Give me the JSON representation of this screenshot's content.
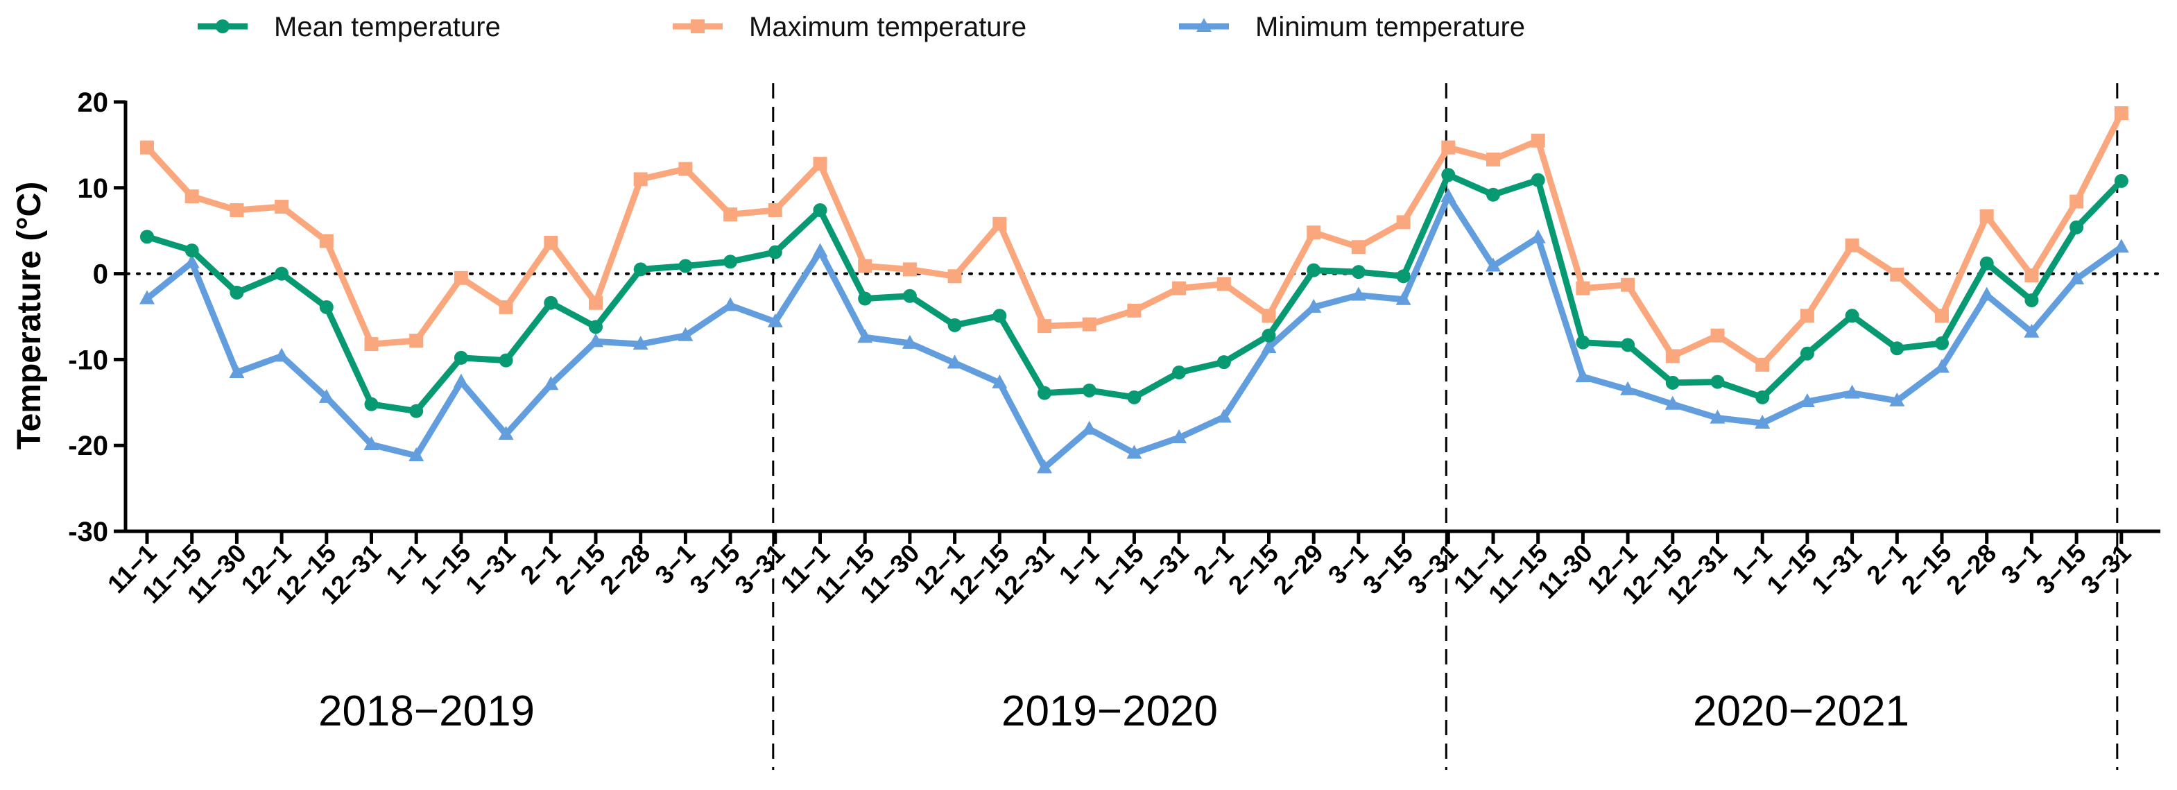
{
  "chart_data": {
    "type": "line",
    "ylabel": "Temperature (°C)",
    "ylim": [
      -30,
      20
    ],
    "yticks": [
      "20",
      "10",
      "0",
      "-10",
      "-20",
      "-30"
    ],
    "reference_line": 0,
    "categories": [
      "11−1",
      "11−15",
      "11−30",
      "12−1",
      "12−15",
      "12−31",
      "1−1",
      "1−15",
      "1−31",
      "2−1",
      "2−15",
      "2−28",
      "3−1",
      "3−15",
      "3−31",
      "11−1",
      "11−15",
      "11−30",
      "12−1",
      "12−15",
      "12−31",
      "1−1",
      "1−15",
      "1−31",
      "2−1",
      "2−15",
      "2−29",
      "3−1",
      "3−15",
      "3−31",
      "11−1",
      "11−15",
      "11-30",
      "12−1",
      "12−15",
      "12−31",
      "1−1",
      "1−15",
      "1−31",
      "2−1",
      "2−15",
      "2−28",
      "3−1",
      "3−15",
      "3−31"
    ],
    "seasons": [
      "2018−2019",
      "2019−2020",
      "2020−2021"
    ],
    "series": [
      {
        "name": "Mean temperature",
        "color": "#079A72",
        "marker": "circle",
        "values": [
          4.3,
          2.7,
          -2.2,
          0.0,
          -3.9,
          -15.2,
          -16.0,
          -9.8,
          -10.1,
          -3.4,
          -6.2,
          0.5,
          0.9,
          1.4,
          2.5,
          7.4,
          -2.9,
          -2.6,
          -6.0,
          -4.9,
          -13.9,
          -13.6,
          -14.4,
          -11.5,
          -10.3,
          -7.2,
          0.4,
          0.2,
          -0.3,
          11.5,
          9.2,
          10.9,
          -8.0,
          -8.3,
          -12.7,
          -12.6,
          -14.4,
          -9.3,
          -4.9,
          -8.7,
          -8.1,
          1.2,
          -3.1,
          5.4,
          10.8
        ]
      },
      {
        "name": "Maximum temperature",
        "color": "#FBA77D",
        "marker": "square",
        "values": [
          14.7,
          9.0,
          7.4,
          7.8,
          3.8,
          -8.2,
          -7.8,
          -0.5,
          -3.9,
          3.6,
          -3.4,
          11.0,
          12.2,
          6.9,
          7.4,
          12.8,
          0.9,
          0.5,
          -0.3,
          5.8,
          -6.1,
          -5.9,
          -4.3,
          -1.7,
          -1.2,
          -4.9,
          4.8,
          3.1,
          6.0,
          14.7,
          13.3,
          15.5,
          -1.7,
          -1.3,
          -9.6,
          -7.2,
          -10.6,
          -4.9,
          3.3,
          -0.1,
          -4.9,
          6.7,
          -0.2,
          8.4,
          18.7
        ]
      },
      {
        "name": "Minimum temperature",
        "color": "#629EDD",
        "marker": "triangle",
        "values": [
          -2.9,
          1.3,
          -11.5,
          -9.6,
          -14.4,
          -19.9,
          -21.2,
          -12.6,
          -18.7,
          -12.9,
          -7.9,
          -8.2,
          -7.2,
          -3.7,
          -5.6,
          2.6,
          -7.4,
          -8.1,
          -10.4,
          -12.7,
          -22.6,
          -18.1,
          -20.9,
          -19.1,
          -16.7,
          -8.6,
          -3.9,
          -2.5,
          -3.0,
          9.0,
          0.9,
          4.2,
          -12.0,
          -13.5,
          -15.2,
          -16.8,
          -17.4,
          -14.9,
          -13.9,
          -14.8,
          -10.9,
          -2.5,
          -6.8,
          -0.6,
          3.1
        ]
      }
    ]
  }
}
